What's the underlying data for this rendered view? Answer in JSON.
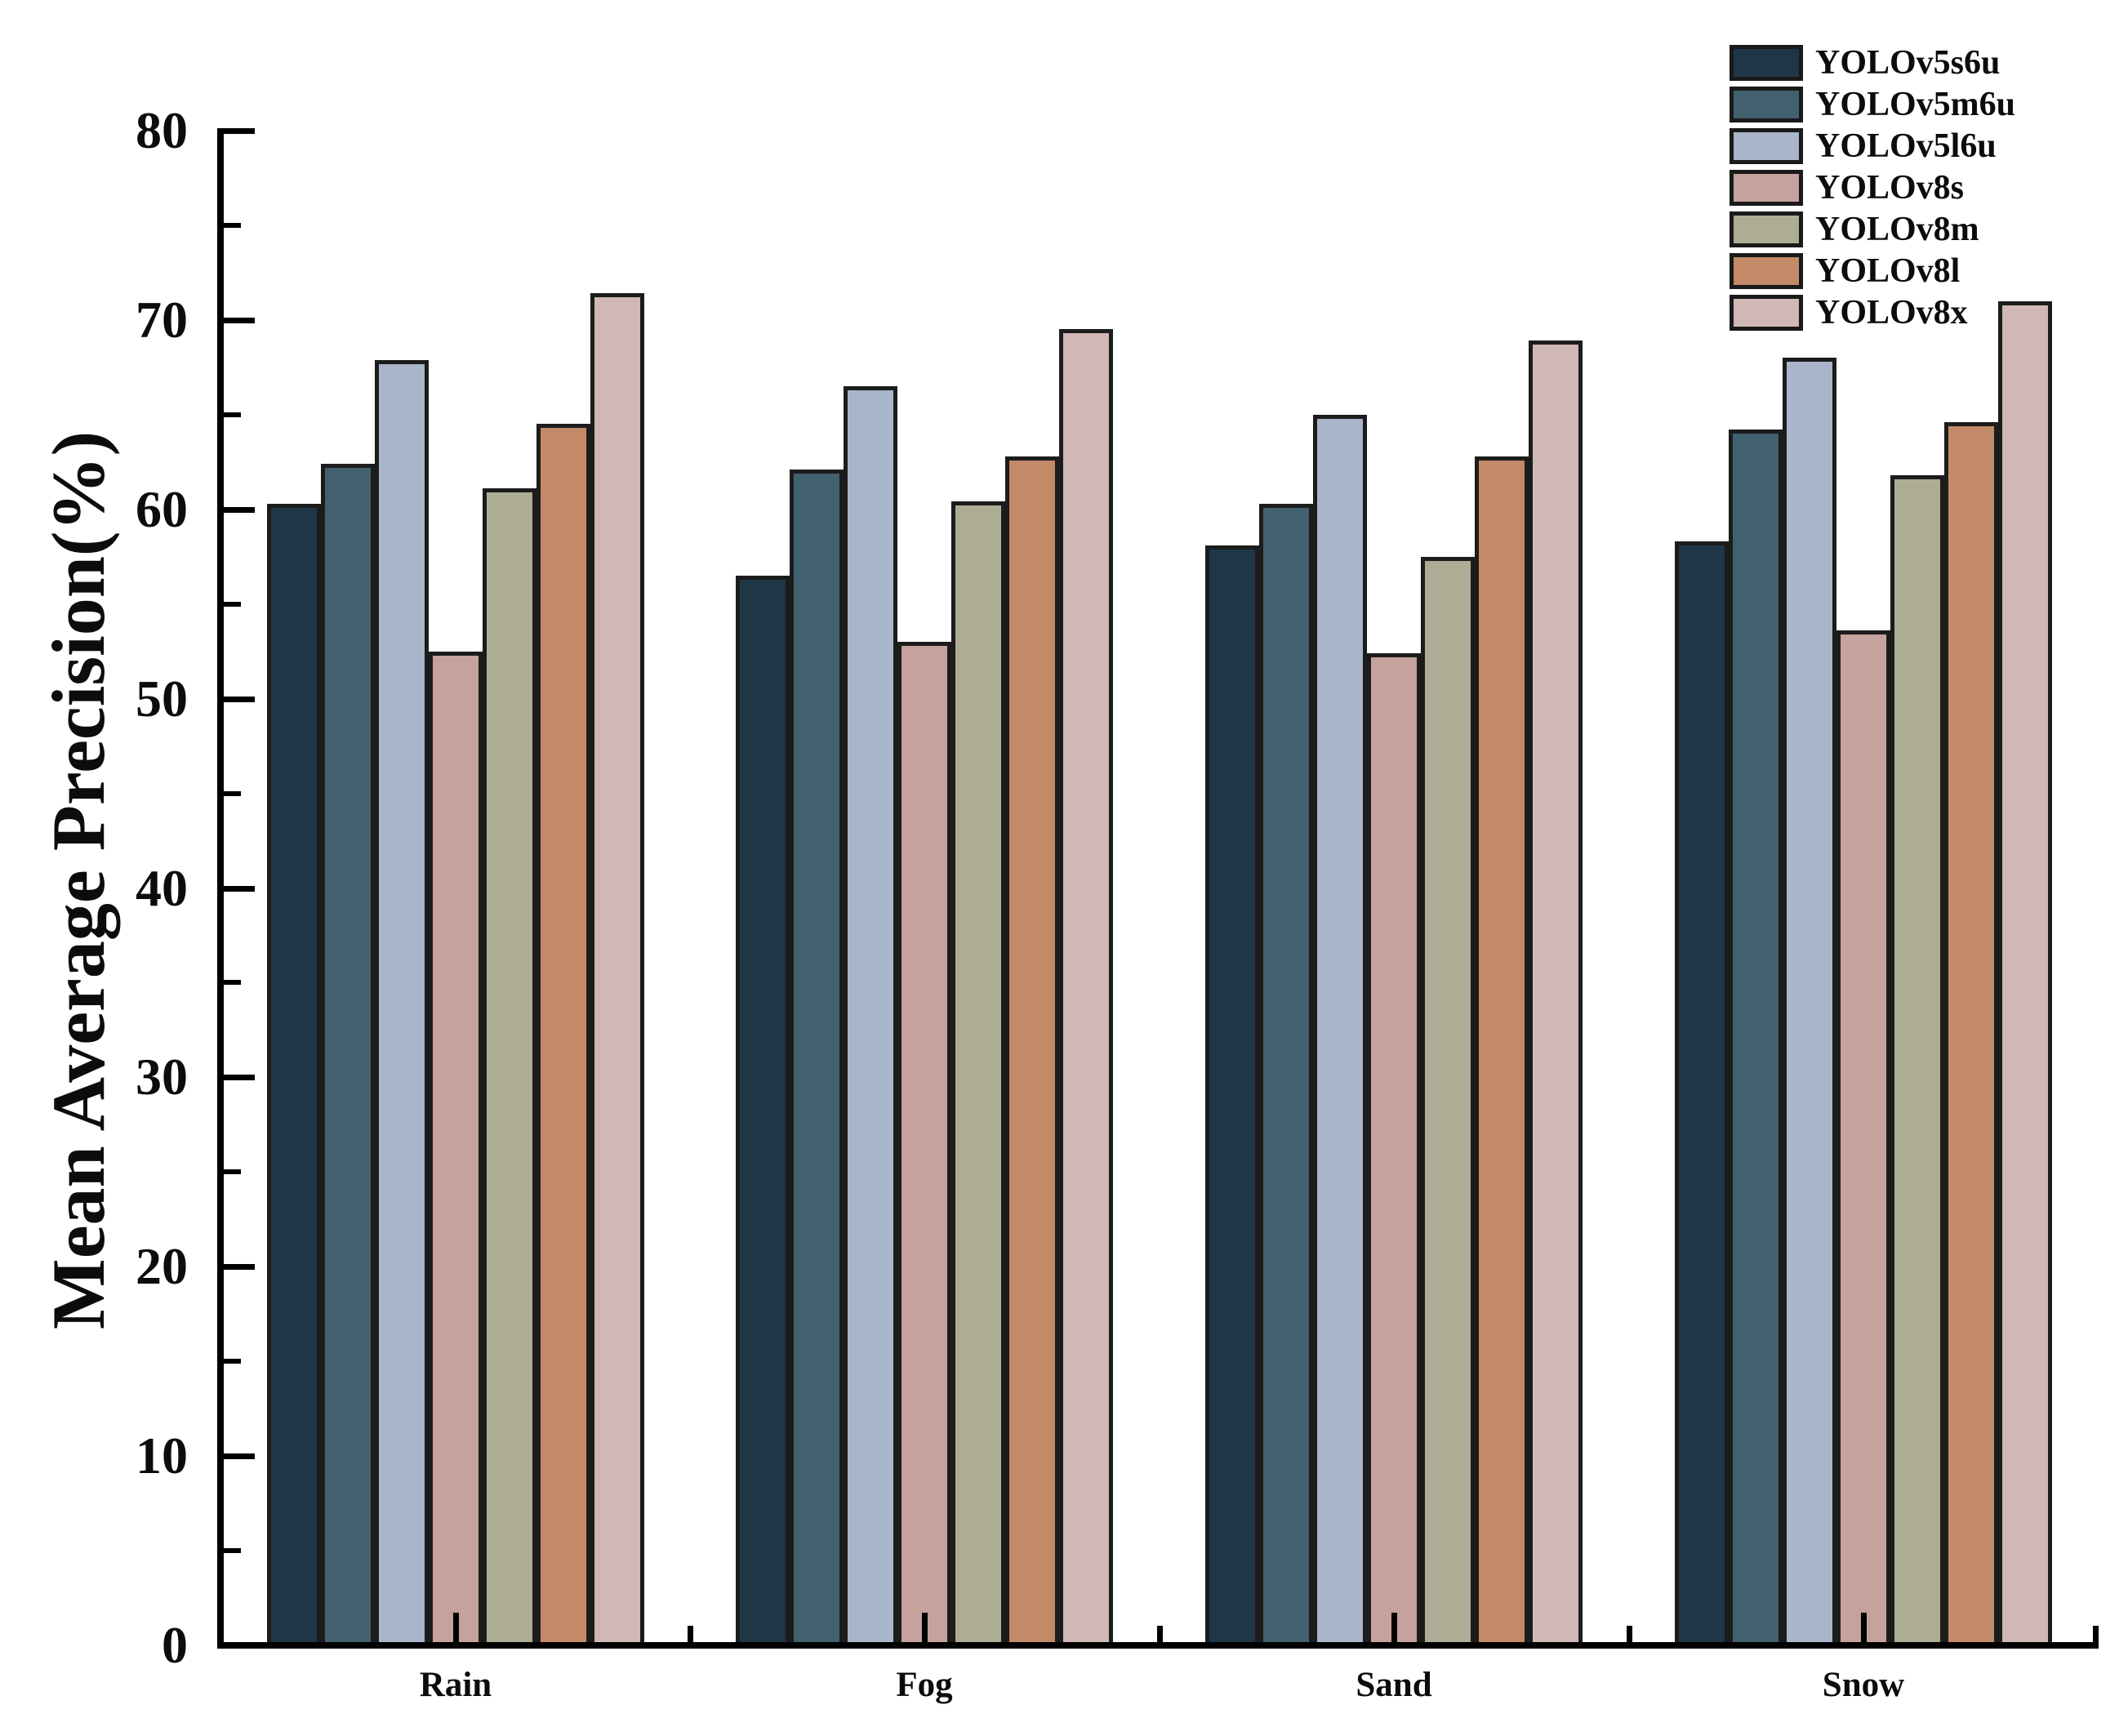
{
  "chart_data": {
    "type": "bar",
    "title": "",
    "xlabel": "",
    "ylabel": "Mean Average Precision(%)",
    "categories": [
      "Rain",
      "Fog",
      "Sand",
      "Snow"
    ],
    "series": [
      {
        "name": "YOLOv5s6u",
        "color": "#1f3647",
        "values": [
          60.3,
          56.5,
          58.1,
          58.3
        ]
      },
      {
        "name": "YOLOv5m6u",
        "color": "#42616f",
        "values": [
          62.4,
          62.1,
          60.3,
          64.2
        ]
      },
      {
        "name": "YOLOv5l6u",
        "color": "#a9b5c9",
        "values": [
          67.9,
          66.5,
          65.0,
          68.0
        ]
      },
      {
        "name": "YOLOv8s",
        "color": "#c5a29c",
        "values": [
          52.5,
          53.0,
          52.4,
          53.6
        ]
      },
      {
        "name": "YOLOv8m",
        "color": "#adac95",
        "values": [
          61.1,
          60.4,
          57.5,
          61.8
        ]
      },
      {
        "name": "YOLOv8l",
        "color": "#c38a68",
        "values": [
          64.5,
          62.8,
          62.8,
          64.6
        ]
      },
      {
        "name": "YOLOv8x",
        "color": "#d0b8b5",
        "values": [
          71.4,
          69.5,
          68.9,
          71.0
        ]
      }
    ],
    "ylim": [
      0,
      80
    ],
    "yticks_major": [
      0,
      10,
      20,
      30,
      40,
      50,
      60,
      70,
      80
    ],
    "yticks_minor": [
      5,
      15,
      25,
      35,
      45,
      55,
      65,
      75
    ],
    "grid": false,
    "legend_position": "top-right",
    "bar_outline_color": "#1c1c1c",
    "axis_color": "#000000",
    "background_color": "#ffffff"
  }
}
